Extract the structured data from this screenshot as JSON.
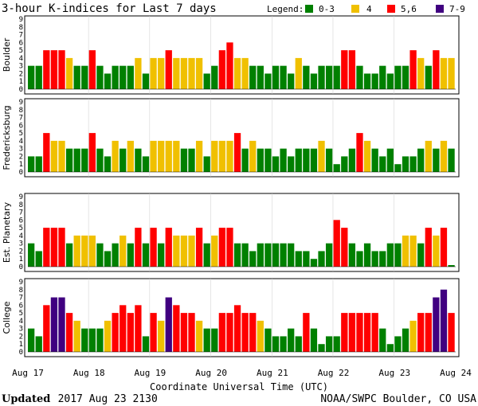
{
  "chart_data": {
    "type": "bar",
    "title": "3-hour K-indices for Last 7 days",
    "legend": {
      "label": "Legend:",
      "items": [
        {
          "label": "0-3",
          "color": "#008000"
        },
        {
          "label": "4",
          "color": "#f0c000"
        },
        {
          "label": "5,6",
          "color": "#ff0000"
        },
        {
          "label": "7-9",
          "color": "#400080"
        }
      ]
    },
    "ylim": [
      0,
      9
    ],
    "yticks": [
      "0",
      "1",
      "2",
      "3",
      "4",
      "5",
      "6",
      "7",
      "8",
      "9"
    ],
    "x_tick_labels": [
      "Aug 17",
      "Aug 18",
      "Aug 19",
      "Aug 20",
      "Aug 21",
      "Aug 22",
      "Aug 23",
      "Aug 24"
    ],
    "xlabel": "Coordinate Universal Time (UTC)",
    "panels": [
      {
        "name": "Boulder",
        "values": [
          3,
          3,
          5,
          5,
          5,
          4,
          3,
          3,
          5,
          3,
          2,
          3,
          3,
          3,
          4,
          2,
          4,
          4,
          5,
          4,
          4,
          4,
          4,
          2,
          3,
          5,
          6,
          4,
          4,
          3,
          3,
          2,
          3,
          3,
          2,
          4,
          3,
          2,
          3,
          3,
          3,
          5,
          5,
          3,
          2,
          2,
          3,
          2,
          3,
          3,
          5,
          4,
          3,
          5,
          4,
          4,
          0
        ]
      },
      {
        "name": "Fredericksburg",
        "values": [
          2,
          2,
          5,
          4,
          4,
          3,
          3,
          3,
          5,
          3,
          2,
          4,
          3,
          4,
          3,
          2,
          4,
          4,
          4,
          4,
          3,
          3,
          4,
          2,
          4,
          4,
          4,
          5,
          3,
          4,
          3,
          3,
          2,
          3,
          2,
          3,
          3,
          3,
          4,
          3,
          1,
          2,
          3,
          5,
          4,
          3,
          2,
          3,
          1,
          2,
          2,
          3,
          4,
          3,
          4,
          3,
          3,
          0
        ]
      },
      {
        "name": "Est. Planetary",
        "values": [
          3,
          2,
          5,
          5,
          5,
          3,
          4,
          4,
          4,
          3,
          2,
          3,
          4,
          3,
          5,
          3,
          5,
          3,
          5,
          4,
          4,
          4,
          5,
          3,
          4,
          5,
          5,
          3,
          3,
          2,
          3,
          3,
          3,
          3,
          3,
          2,
          2,
          1,
          2,
          3,
          6,
          5,
          3,
          2,
          3,
          2,
          2,
          3,
          3,
          4,
          4,
          3,
          5,
          4,
          5,
          0
        ]
      },
      {
        "name": "College",
        "values": [
          3,
          2,
          6,
          7,
          7,
          5,
          4,
          3,
          3,
          3,
          4,
          5,
          6,
          5,
          6,
          2,
          5,
          4,
          7,
          6,
          5,
          5,
          4,
          3,
          3,
          5,
          5,
          6,
          5,
          5,
          4,
          3,
          2,
          2,
          3,
          2,
          5,
          3,
          1,
          2,
          2,
          5,
          5,
          5,
          5,
          5,
          3,
          1,
          2,
          3,
          4,
          5,
          5,
          7,
          8,
          5,
          0
        ]
      }
    ],
    "grid": false
  },
  "footer": {
    "updated_label": "Updated",
    "updated_value": "2017 Aug 23 2130",
    "credit": "NOAA/SWPC Boulder, CO USA"
  }
}
